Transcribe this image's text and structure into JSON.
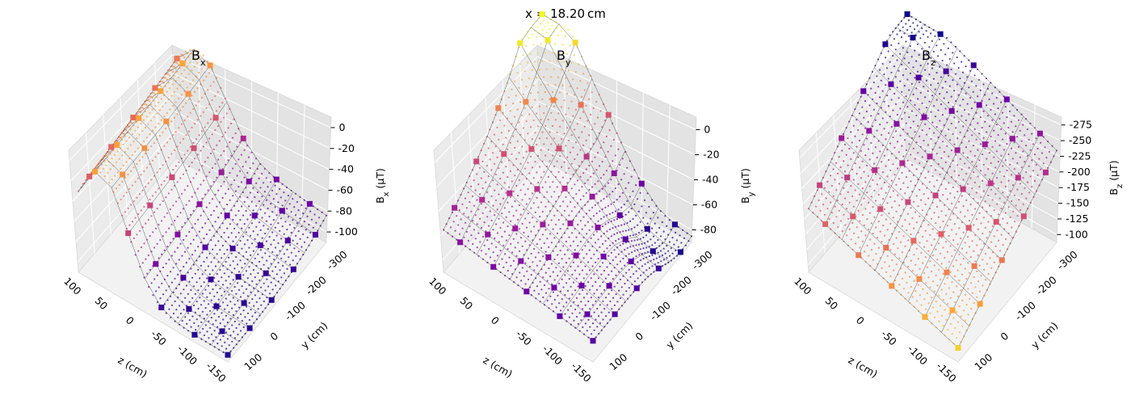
{
  "figure": {
    "suptitle": "x = 18.20 cm",
    "colormap": "plasma",
    "point_colors": [
      "#0d0887",
      "#6a00a8",
      "#b12a90",
      "#e16462",
      "#fca636",
      "#f0f921"
    ]
  },
  "chart_data": [
    {
      "type": "surface3d",
      "title": "B",
      "title_sub": "x",
      "xlabel": "z (cm)",
      "ylabel": "y (cm)",
      "zlabel_main": "B",
      "zlabel_sub": "x",
      "zlabel_unit": " (μT)",
      "x_ticks": [
        "100",
        "50",
        "0",
        "-50",
        "-100",
        "-150"
      ],
      "y_ticks": [
        "100",
        "0",
        "-100",
        "-200",
        "-300"
      ],
      "z_ticks": [
        "0",
        "-20",
        "-40",
        "-60",
        "-80",
        "-100"
      ],
      "xlim": [
        -170,
        110
      ],
      "ylim": [
        -320,
        160
      ],
      "zlim": [
        -110,
        10
      ]
    },
    {
      "type": "surface3d",
      "title": "B",
      "title_sub": "y",
      "xlabel": "z (cm)",
      "ylabel": "y (cm)",
      "zlabel_main": "B",
      "zlabel_sub": "y",
      "zlabel_unit": " (μT)",
      "x_ticks": [
        "100",
        "50",
        "0",
        "-50",
        "-100",
        "-150"
      ],
      "y_ticks": [
        "100",
        "0",
        "-100",
        "-200",
        "-300"
      ],
      "z_ticks": [
        "0",
        "-20",
        "-40",
        "-60",
        "-80"
      ],
      "xlim": [
        -170,
        110
      ],
      "ylim": [
        -320,
        160
      ],
      "zlim": [
        -95,
        5
      ]
    },
    {
      "type": "surface3d",
      "title": "B",
      "title_sub": "z",
      "xlabel": "z (cm)",
      "ylabel": "y (cm)",
      "zlabel_main": "B",
      "zlabel_sub": "z",
      "zlabel_unit": " (μT)",
      "x_ticks": [
        "100",
        "50",
        "0",
        "-50",
        "-100",
        "-150"
      ],
      "y_ticks": [
        "100",
        "0",
        "-100",
        "-200",
        "-300"
      ],
      "z_ticks": [
        "-275",
        "-250",
        "-225",
        "-200",
        "-175",
        "-150",
        "-125",
        "-100"
      ],
      "xlim": [
        -170,
        110
      ],
      "ylim": [
        -320,
        160
      ],
      "zlim": [
        -285,
        -90
      ]
    }
  ]
}
